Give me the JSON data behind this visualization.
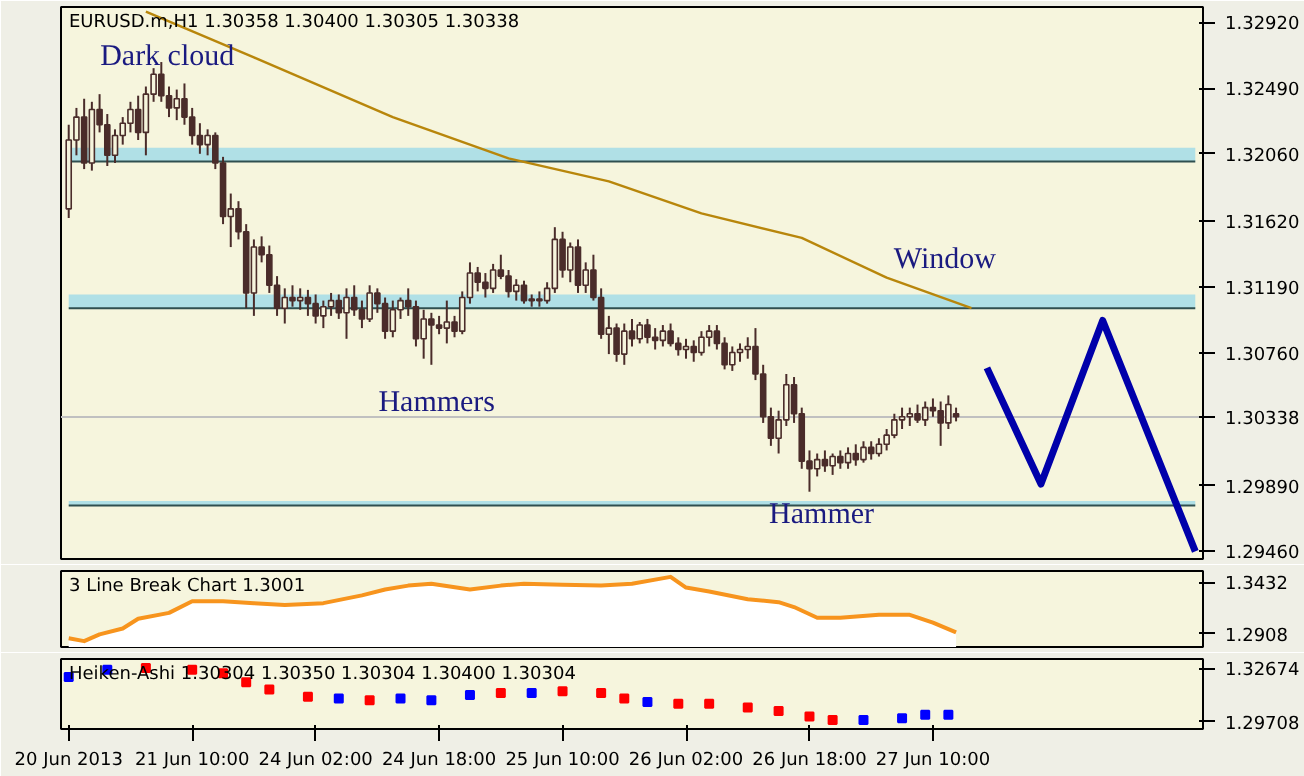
{
  "chart_data": [
    {
      "type": "candlestick",
      "title": "EURUSD.m,H1  1.30358 1.30400 1.30305 1.30338",
      "tick_labels": "y",
      "ylim": [
        1.2941,
        1.3302
      ],
      "yticks": [
        {
          "value": 1.3292,
          "label": "1.32920"
        },
        {
          "value": 1.3249,
          "label": "1.32490"
        },
        {
          "value": 1.3206,
          "label": "1.32060"
        },
        {
          "value": 1.3162,
          "label": "1.31620"
        },
        {
          "value": 1.3119,
          "label": "1.31190"
        },
        {
          "value": 1.3076,
          "label": "1.30760"
        },
        {
          "value": 1.2989,
          "label": "1.29890"
        },
        {
          "value": 1.2946,
          "label": "1.29460"
        }
      ],
      "categories": [
        null,
        null,
        null,
        null,
        null,
        null,
        null,
        null,
        null,
        null,
        null,
        null,
        null,
        null,
        null,
        null,
        null,
        null,
        null,
        null,
        null,
        null,
        null,
        null,
        null,
        null,
        null,
        null,
        null,
        null,
        null,
        null,
        null,
        null,
        null,
        null,
        null,
        null,
        null,
        null,
        null,
        null,
        null,
        null,
        null,
        null,
        null,
        null,
        null,
        null,
        null,
        null,
        null,
        null,
        null,
        null,
        null,
        null,
        null,
        null,
        null,
        null,
        null,
        null,
        null,
        null,
        null,
        null,
        null,
        null,
        null,
        null,
        null,
        null,
        null,
        null,
        null,
        null,
        null,
        null,
        null,
        null,
        null,
        null,
        null,
        null,
        null,
        null,
        null,
        null,
        null,
        null,
        null,
        null,
        null,
        null,
        null,
        null,
        null,
        null,
        null,
        null,
        null,
        null,
        null,
        null,
        null,
        null,
        null,
        null,
        null,
        null,
        null,
        null,
        null,
        null,
        null,
        null,
        null,
        null,
        null,
        null,
        null,
        null,
        null,
        null,
        null,
        null,
        null,
        null,
        null,
        null,
        null,
        null,
        null,
        null,
        null,
        null,
        null,
        null,
        null,
        null,
        null,
        null,
        null,
        null,
        null
      ],
      "ohlc": [
        [
          1.317,
          1.3225,
          1.3164,
          1.3215
        ],
        [
          1.3215,
          1.3236,
          1.3205,
          1.323
        ],
        [
          1.323,
          1.3242,
          1.3196,
          1.32
        ],
        [
          1.32,
          1.324,
          1.3195,
          1.3235
        ],
        [
          1.3235,
          1.3245,
          1.322,
          1.3225
        ],
        [
          1.3225,
          1.3232,
          1.3198,
          1.3205
        ],
        [
          1.3205,
          1.3222,
          1.32,
          1.3218
        ],
        [
          1.3218,
          1.323,
          1.3212,
          1.3226
        ],
        [
          1.3226,
          1.324,
          1.322,
          1.3235
        ],
        [
          1.3235,
          1.3244,
          1.3215,
          1.322
        ],
        [
          1.322,
          1.325,
          1.3205,
          1.3245
        ],
        [
          1.3245,
          1.3262,
          1.324,
          1.3258
        ],
        [
          1.3258,
          1.3266,
          1.324,
          1.3244
        ],
        [
          1.3244,
          1.325,
          1.323,
          1.3236
        ],
        [
          1.3236,
          1.3248,
          1.3228,
          1.3242
        ],
        [
          1.3242,
          1.3252,
          1.3225,
          1.323
        ],
        [
          1.323,
          1.3236,
          1.3212,
          1.3218
        ],
        [
          1.3218,
          1.3226,
          1.3206,
          1.3212
        ],
        [
          1.3212,
          1.3222,
          1.3205,
          1.3218
        ],
        [
          1.3218,
          1.322,
          1.3196,
          1.32
        ],
        [
          1.32,
          1.3204,
          1.316,
          1.3165
        ],
        [
          1.3165,
          1.318,
          1.3145,
          1.317
        ],
        [
          1.317,
          1.3175,
          1.315,
          1.3155
        ],
        [
          1.3155,
          1.316,
          1.3105,
          1.3115
        ],
        [
          1.3115,
          1.315,
          1.31,
          1.3145
        ],
        [
          1.3145,
          1.3152,
          1.3135,
          1.314
        ],
        [
          1.314,
          1.3146,
          1.3115,
          1.312
        ],
        [
          1.312,
          1.3126,
          1.31,
          1.3105
        ],
        [
          1.3105,
          1.3118,
          1.3095,
          1.3112
        ],
        [
          1.3112,
          1.312,
          1.3106,
          1.311
        ],
        [
          1.311,
          1.3118,
          1.3104,
          1.3112
        ],
        [
          1.3112,
          1.3117,
          1.31,
          1.3108
        ],
        [
          1.3108,
          1.3114,
          1.3095,
          1.31
        ],
        [
          1.31,
          1.311,
          1.3092,
          1.3106
        ],
        [
          1.3106,
          1.3115,
          1.31,
          1.311
        ],
        [
          1.311,
          1.3114,
          1.3098,
          1.3102
        ],
        [
          1.3102,
          1.3118,
          1.3085,
          1.3112
        ],
        [
          1.3112,
          1.312,
          1.31,
          1.3104
        ],
        [
          1.3104,
          1.311,
          1.3092,
          1.3098
        ],
        [
          1.3098,
          1.312,
          1.3096,
          1.3115
        ],
        [
          1.3115,
          1.3118,
          1.3102,
          1.3108
        ],
        [
          1.3108,
          1.3112,
          1.3085,
          1.309
        ],
        [
          1.309,
          1.311,
          1.3086,
          1.3104
        ],
        [
          1.3104,
          1.3112,
          1.3098,
          1.311
        ],
        [
          1.311,
          1.3118,
          1.31,
          1.3106
        ],
        [
          1.3106,
          1.311,
          1.308,
          1.3085
        ],
        [
          1.3085,
          1.3104,
          1.3072,
          1.3098
        ],
        [
          1.3098,
          1.3102,
          1.3068,
          1.3094
        ],
        [
          1.3094,
          1.31,
          1.3088,
          1.3092
        ],
        [
          1.3092,
          1.311,
          1.3082,
          1.3096
        ],
        [
          1.3096,
          1.31,
          1.3086,
          1.309
        ],
        [
          1.309,
          1.3116,
          1.3088,
          1.3112
        ],
        [
          1.3112,
          1.3135,
          1.3108,
          1.3128
        ],
        [
          1.3128,
          1.3132,
          1.3116,
          1.3122
        ],
        [
          1.3122,
          1.3128,
          1.3112,
          1.3118
        ],
        [
          1.3118,
          1.3134,
          1.3115,
          1.313
        ],
        [
          1.313,
          1.314,
          1.3124,
          1.3126
        ],
        [
          1.3126,
          1.313,
          1.3112,
          1.3116
        ],
        [
          1.3116,
          1.3124,
          1.311,
          1.312
        ],
        [
          1.312,
          1.3123,
          1.3108,
          1.311
        ],
        [
          1.311,
          1.3114,
          1.3106,
          1.3111
        ],
        [
          1.3111,
          1.3116,
          1.3106,
          1.311
        ],
        [
          1.311,
          1.3122,
          1.3108,
          1.3118
        ],
        [
          1.3118,
          1.3158,
          1.3115,
          1.315
        ],
        [
          1.315,
          1.3155,
          1.3125,
          1.313
        ],
        [
          1.313,
          1.3148,
          1.3122,
          1.3145
        ],
        [
          1.3145,
          1.315,
          1.3115,
          1.312
        ],
        [
          1.312,
          1.3135,
          1.3115,
          1.313
        ],
        [
          1.313,
          1.314,
          1.311,
          1.3112
        ],
        [
          1.3112,
          1.3118,
          1.3085,
          1.3088
        ],
        [
          1.3088,
          1.31,
          1.3075,
          1.3092
        ],
        [
          1.3092,
          1.3095,
          1.307,
          1.3075
        ],
        [
          1.3075,
          1.3095,
          1.3068,
          1.309
        ],
        [
          1.309,
          1.3098,
          1.308,
          1.3085
        ],
        [
          1.3085,
          1.3096,
          1.3082,
          1.3094
        ],
        [
          1.3094,
          1.3098,
          1.3082,
          1.3086
        ],
        [
          1.3086,
          1.3092,
          1.3078,
          1.3084
        ],
        [
          1.3084,
          1.3094,
          1.308,
          1.309
        ],
        [
          1.309,
          1.3095,
          1.308,
          1.3082
        ],
        [
          1.3082,
          1.3086,
          1.3074,
          1.3078
        ],
        [
          1.3078,
          1.3085,
          1.3072,
          1.308
        ],
        [
          1.308,
          1.3084,
          1.307,
          1.3076
        ],
        [
          1.3076,
          1.309,
          1.3074,
          1.3086
        ],
        [
          1.3086,
          1.3094,
          1.308,
          1.309
        ],
        [
          1.309,
          1.3094,
          1.3078,
          1.3082
        ],
        [
          1.3082,
          1.3086,
          1.3065,
          1.3068
        ],
        [
          1.3068,
          1.308,
          1.3064,
          1.3076
        ],
        [
          1.3076,
          1.3082,
          1.307,
          1.3078
        ],
        [
          1.3078,
          1.3086,
          1.3072,
          1.308
        ],
        [
          1.308,
          1.3092,
          1.3058,
          1.3062
        ],
        [
          1.3062,
          1.3068,
          1.303,
          1.3034
        ],
        [
          1.3034,
          1.304,
          1.3015,
          1.302
        ],
        [
          1.302,
          1.3038,
          1.301,
          1.3032
        ],
        [
          1.3032,
          1.3062,
          1.3028,
          1.3055
        ],
        [
          1.3055,
          1.306,
          1.303,
          1.3036
        ],
        [
          1.3036,
          1.304,
          1.3,
          1.3005
        ],
        [
          1.3005,
          1.3012,
          1.2985,
          1.3
        ],
        [
          1.3,
          1.301,
          1.2995,
          1.3006
        ],
        [
          1.3006,
          1.3012,
          1.2998,
          1.3002
        ],
        [
          1.3002,
          1.301,
          1.2996,
          1.3008
        ],
        [
          1.3008,
          1.3012,
          1.3,
          1.3004
        ],
        [
          1.3004,
          1.3014,
          1.3,
          1.301
        ],
        [
          1.301,
          1.3016,
          1.3002,
          1.3006
        ],
        [
          1.3006,
          1.3018,
          1.3004,
          1.3014
        ],
        [
          1.3014,
          1.3018,
          1.3006,
          1.301
        ],
        [
          1.301,
          1.302,
          1.3008,
          1.3016
        ],
        [
          1.3016,
          1.3026,
          1.3012,
          1.3022
        ],
        [
          1.3022,
          1.3036,
          1.302,
          1.3032
        ],
        [
          1.3032,
          1.304,
          1.3026,
          1.3034
        ],
        [
          1.3034,
          1.304,
          1.3028,
          1.3036
        ],
        [
          1.3036,
          1.3042,
          1.303,
          1.3032
        ],
        [
          1.3032,
          1.3044,
          1.3028,
          1.304
        ],
        [
          1.304,
          1.3046,
          1.3034,
          1.3038
        ],
        [
          1.3038,
          1.3044,
          1.3015,
          1.303
        ],
        [
          1.303,
          1.3048,
          1.3026,
          1.3042
        ],
        [
          1.3036,
          1.304,
          1.3031,
          1.3034
        ],
        null,
        null,
        null,
        null,
        null,
        null,
        null,
        null,
        null,
        null,
        null,
        null,
        null,
        null,
        null,
        null,
        null,
        null,
        null,
        null,
        null,
        null,
        null,
        null,
        null,
        null,
        null,
        null,
        null,
        null,
        null
      ],
      "series": [
        {
          "type": "line",
          "color": "#b8860b",
          "values": [
            null,
            null,
            null,
            null,
            null,
            null,
            null,
            null,
            null,
            null,
            1.3299,
            null,
            null,
            null,
            null,
            null,
            null,
            null,
            null,
            null,
            null,
            null,
            null,
            null,
            1.3269,
            null,
            null,
            null,
            null,
            null,
            null,
            null,
            null,
            null,
            null,
            null,
            null,
            null,
            null,
            null,
            null,
            null,
            1.323,
            null,
            null,
            null,
            null,
            null,
            null,
            null,
            null,
            null,
            null,
            null,
            null,
            null,
            null,
            1.3203,
            null,
            null,
            null,
            null,
            null,
            null,
            null,
            null,
            null,
            null,
            null,
            null,
            1.3188,
            null,
            null,
            null,
            null,
            null,
            null,
            null,
            null,
            null,
            null,
            null,
            1.3167,
            null,
            null,
            null,
            null,
            null,
            null,
            null,
            null,
            null,
            null,
            null,
            null,
            1.3151,
            null,
            null,
            null,
            null,
            null,
            null,
            null,
            null,
            null,
            null,
            1.3125,
            null,
            null,
            null,
            null,
            null,
            null,
            null,
            null,
            null,
            null,
            1.3105,
            null,
            null,
            null,
            null,
            null,
            null,
            null,
            null,
            null,
            null,
            null,
            null,
            null,
            null,
            null,
            null,
            null,
            null,
            null,
            null,
            null,
            null,
            null,
            null,
            null,
            null,
            null,
            null,
            null
          ]
        },
        {
          "type": "line",
          "color": "#0000aa",
          "values": [
            null,
            null,
            null,
            null,
            null,
            null,
            null,
            null,
            null,
            null,
            null,
            null,
            null,
            null,
            null,
            null,
            null,
            null,
            null,
            null,
            null,
            null,
            null,
            null,
            null,
            null,
            null,
            null,
            null,
            null,
            null,
            null,
            null,
            null,
            null,
            null,
            null,
            null,
            null,
            null,
            null,
            null,
            null,
            null,
            null,
            null,
            null,
            null,
            null,
            null,
            null,
            null,
            null,
            null,
            null,
            null,
            null,
            null,
            null,
            null,
            null,
            null,
            null,
            null,
            null,
            null,
            null,
            null,
            null,
            null,
            null,
            null,
            null,
            null,
            null,
            null,
            null,
            null,
            null,
            null,
            null,
            null,
            null,
            null,
            null,
            null,
            null,
            null,
            null,
            null,
            null,
            null,
            null,
            null,
            null,
            null,
            null,
            null,
            null,
            null,
            null,
            null,
            null,
            null,
            null,
            null,
            null,
            null,
            null,
            null,
            null,
            null,
            null,
            null,
            null,
            null,
            null,
            null,
            null,
            1.3066,
            null,
            null,
            null,
            null,
            null,
            null,
            1.299,
            null,
            null,
            null,
            null,
            null,
            null,
            null,
            1.3097,
            null,
            null,
            null,
            null,
            null,
            null,
            null,
            null,
            null,
            null,
            null,
            1.2946
          ]
        }
      ],
      "bands": [
        {
          "axis": "y",
          "from": 1.3201,
          "to": 1.321,
          "color": "#b0e0e6"
        },
        {
          "axis": "y",
          "from": 1.3105,
          "to": 1.3114,
          "color": "#b0e0e6"
        },
        {
          "axis": "y",
          "from": 1.2976,
          "to": 1.2979,
          "color": "#b0e0e6"
        }
      ],
      "ref_lines": [
        {
          "axis": "y",
          "value": 1.30338,
          "label": "1.30338",
          "color": "#c0c0c0"
        }
      ],
      "annotations": [
        "Dark cloud",
        "Hammers",
        "Window",
        "Hammer"
      ]
    },
    {
      "type": "area",
      "title": "3 Line Break Chart 1.3001",
      "tick_labels": "y",
      "ylim": [
        1.277,
        1.355
      ],
      "yticks": [
        {
          "value": 1.3432,
          "label": "1.3432"
        },
        {
          "value": 1.2908,
          "label": "1.2908"
        }
      ],
      "categories": [
        null,
        null,
        null,
        null,
        null,
        null,
        null,
        null,
        null,
        null,
        null,
        null,
        null,
        null,
        null,
        null,
        null,
        null,
        null,
        null,
        null,
        null,
        null,
        null,
        null,
        null,
        null,
        null,
        null,
        null,
        null,
        null,
        null,
        null,
        null,
        null,
        null,
        null,
        null,
        null,
        null,
        null,
        null,
        null,
        null,
        null,
        null,
        null,
        null,
        null,
        null,
        null,
        null,
        null,
        null,
        null,
        null,
        null,
        null,
        null,
        null,
        null,
        null,
        null,
        null,
        null,
        null,
        null,
        null,
        null,
        null,
        null,
        null,
        null,
        null,
        null,
        null,
        null,
        null,
        null,
        null,
        null,
        null,
        null,
        null,
        null,
        null,
        null,
        null,
        null,
        null,
        null,
        null,
        null,
        null,
        null,
        null,
        null,
        null,
        null,
        null,
        null,
        null,
        null,
        null,
        null,
        null,
        null,
        null,
        null,
        null,
        null,
        null,
        null,
        null,
        null,
        null,
        null,
        null,
        null,
        null,
        null,
        null,
        null,
        null,
        null,
        null,
        null,
        null,
        null,
        null,
        null,
        null,
        null,
        null,
        null,
        null,
        null,
        null,
        null,
        null,
        null,
        null,
        null,
        null,
        null,
        null
      ],
      "series": [
        {
          "color": "#f7941d",
          "values": [
            1.286,
            null,
            1.283,
            null,
            1.29,
            null,
            null,
            1.296,
            null,
            1.306,
            null,
            null,
            null,
            1.312,
            null,
            null,
            1.324,
            null,
            null,
            null,
            1.324,
            null,
            null,
            null,
            1.322,
            null,
            null,
            null,
            1.32,
            null,
            null,
            null,
            null,
            1.322,
            null,
            null,
            null,
            null,
            1.33,
            null,
            null,
            1.336,
            null,
            null,
            1.34,
            null,
            null,
            1.342,
            null,
            null,
            null,
            null,
            1.336,
            null,
            null,
            null,
            1.34,
            null,
            null,
            1.342,
            null,
            null,
            null,
            null,
            1.341,
            null,
            null,
            null,
            null,
            1.34,
            null,
            null,
            null,
            1.342,
            null,
            null,
            null,
            null,
            1.349,
            null,
            1.338,
            null,
            null,
            1.334,
            null,
            null,
            null,
            null,
            1.326,
            null,
            null,
            null,
            1.323,
            null,
            1.318,
            null,
            null,
            1.307,
            null,
            null,
            1.307,
            null,
            null,
            null,
            null,
            1.31,
            null,
            null,
            null,
            1.31,
            null,
            null,
            1.302,
            null,
            null,
            1.292,
            null,
            null,
            null,
            null,
            null,
            null,
            null,
            null,
            null,
            null,
            null,
            null,
            null,
            null,
            null,
            null,
            null,
            null,
            null,
            null,
            null,
            null,
            null,
            null,
            null,
            null,
            null,
            null,
            null,
            null,
            null
          ]
        }
      ]
    },
    {
      "type": "scatter",
      "title": "Heiken-Ashi 1.30304 1.30350 1.30304 1.30400 1.30304",
      "marker": "square",
      "ylim": [
        1.293,
        1.332
      ],
      "yticks": [
        {
          "value": 1.32674,
          "label": "1.32674"
        },
        {
          "value": 1.29708,
          "label": "1.29708"
        }
      ],
      "categories": [
        "20 Jun 2013",
        null,
        null,
        null,
        null,
        null,
        null,
        null,
        null,
        null,
        null,
        null,
        null,
        null,
        null,
        null,
        "21 Jun 10:00",
        null,
        null,
        null,
        null,
        null,
        null,
        null,
        null,
        null,
        null,
        null,
        null,
        null,
        null,
        null,
        "24 Jun 02:00",
        null,
        null,
        null,
        null,
        null,
        null,
        null,
        null,
        null,
        null,
        null,
        null,
        null,
        null,
        null,
        "24 Jun 18:00",
        null,
        null,
        null,
        null,
        null,
        null,
        null,
        null,
        null,
        null,
        null,
        null,
        null,
        null,
        null,
        "25 Jun 10:00",
        null,
        null,
        null,
        null,
        null,
        null,
        null,
        null,
        null,
        null,
        null,
        null,
        null,
        null,
        null,
        "26 Jun 02:00",
        null,
        null,
        null,
        null,
        null,
        null,
        null,
        null,
        null,
        null,
        null,
        null,
        null,
        null,
        null,
        "26 Jun 18:00",
        null,
        null,
        null,
        null,
        null,
        null,
        null,
        null,
        null,
        null,
        null,
        null,
        null,
        null,
        null,
        "27 Jun 10:00",
        null,
        null,
        null,
        null,
        null,
        null,
        null,
        null,
        null,
        null,
        null,
        null,
        null,
        null,
        null,
        null,
        null,
        null,
        null,
        null,
        null,
        null,
        null,
        null,
        null,
        null,
        null,
        null,
        null,
        null,
        null,
        null,
        null,
        null
      ],
      "series": [
        {
          "values": [
            1.322,
            null,
            null,
            null,
            null,
            1.326,
            null,
            null,
            null,
            null,
            1.327,
            null,
            null,
            null,
            null,
            null,
            1.326,
            null,
            null,
            null,
            1.324,
            null,
            null,
            1.319,
            null,
            null,
            1.315,
            null,
            null,
            null,
            null,
            1.311,
            null,
            null,
            null,
            1.31,
            null,
            null,
            null,
            1.309,
            null,
            null,
            null,
            1.31,
            null,
            null,
            null,
            1.309,
            null,
            null,
            null,
            null,
            1.312,
            null,
            null,
            null,
            1.313,
            null,
            null,
            null,
            1.313,
            null,
            null,
            null,
            1.314,
            null,
            null,
            null,
            null,
            1.313,
            null,
            null,
            1.31,
            null,
            null,
            1.308,
            null,
            null,
            null,
            1.307,
            null,
            null,
            null,
            1.307,
            null,
            null,
            null,
            null,
            1.305,
            null,
            null,
            null,
            1.303,
            null,
            null,
            null,
            1.3,
            null,
            null,
            1.298,
            null,
            null,
            null,
            1.298,
            null,
            null,
            null,
            null,
            1.299,
            null,
            null,
            1.301,
            null,
            null,
            1.301,
            null,
            null,
            null,
            null,
            null,
            null,
            null,
            null,
            null,
            null,
            null,
            null,
            null,
            null,
            null,
            null,
            null,
            null,
            null,
            null,
            null,
            null,
            null,
            null,
            null,
            null,
            null,
            null,
            null,
            null,
            null,
            null
          ],
          "colors": [
            "#0000ff",
            null,
            null,
            null,
            null,
            "#0000ff",
            null,
            null,
            null,
            null,
            "#ff0000",
            null,
            null,
            null,
            null,
            null,
            "#ff0000",
            null,
            null,
            null,
            "#ff0000",
            null,
            null,
            "#ff0000",
            null,
            null,
            "#ff0000",
            null,
            null,
            null,
            null,
            "#ff0000",
            null,
            null,
            null,
            "#0000ff",
            null,
            null,
            null,
            "#ff0000",
            null,
            null,
            null,
            "#0000ff",
            null,
            null,
            null,
            "#0000ff",
            null,
            null,
            null,
            null,
            "#0000ff",
            null,
            null,
            null,
            "#ff0000",
            null,
            null,
            null,
            "#0000ff",
            null,
            null,
            null,
            "#ff0000",
            null,
            null,
            null,
            null,
            "#ff0000",
            null,
            null,
            "#ff0000",
            null,
            null,
            "#0000ff",
            null,
            null,
            null,
            "#ff0000",
            null,
            null,
            null,
            "#ff0000",
            null,
            null,
            null,
            null,
            "#ff0000",
            null,
            null,
            null,
            "#ff0000",
            null,
            null,
            null,
            "#ff0000",
            null,
            null,
            "#ff0000",
            null,
            null,
            null,
            "#0000ff",
            null,
            null,
            null,
            null,
            "#0000ff",
            null,
            null,
            "#0000ff",
            null,
            null,
            "#0000ff",
            null,
            null,
            null,
            null,
            null,
            null,
            null,
            null,
            null,
            null,
            null,
            null,
            null,
            null,
            null,
            null,
            null,
            null,
            null,
            null,
            null,
            null,
            null,
            null,
            null,
            null,
            null,
            null,
            null,
            null,
            null,
            null
          ]
        }
      ]
    }
  ]
}
